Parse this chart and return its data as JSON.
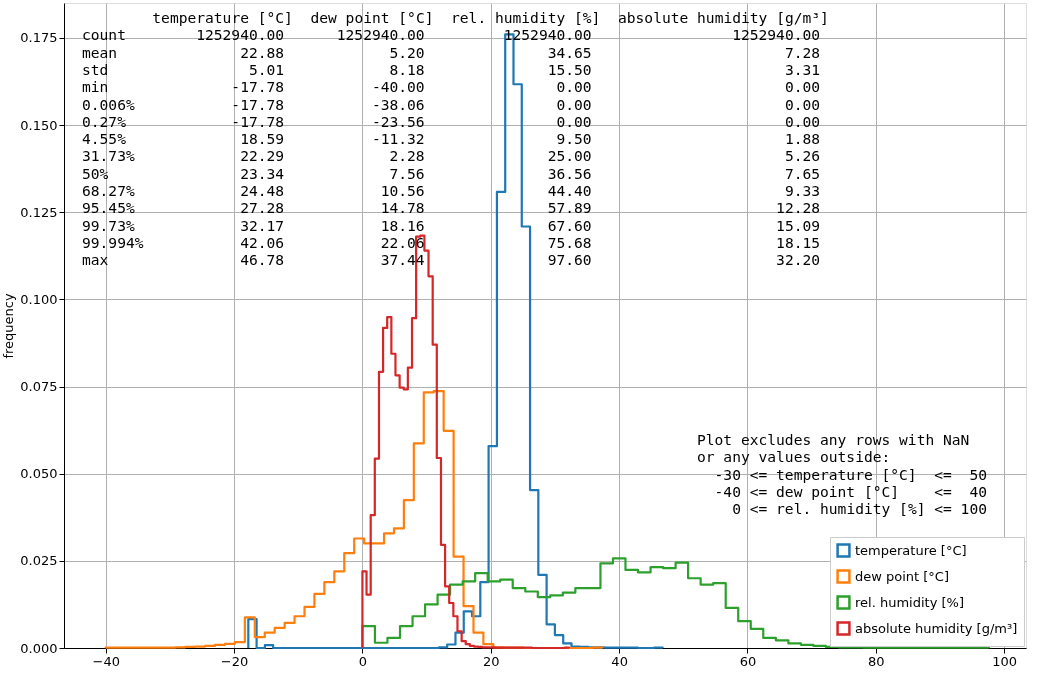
{
  "chart_data": {
    "type": "step",
    "ylabel": "frequency",
    "xlim": [
      -46.5,
      103.4
    ],
    "ylim": [
      0,
      0.185
    ],
    "xticks": [
      {
        "value": -40,
        "label": "−40"
      },
      {
        "value": -20,
        "label": "−20"
      },
      0,
      20,
      40,
      60,
      80,
      100
    ],
    "yticks": [
      {
        "value": 0,
        "label": "0.000"
      },
      0.025,
      {
        "value": 0.05,
        "label": "0.050"
      },
      0.075,
      {
        "value": 0.1,
        "label": "0.100"
      },
      0.125,
      {
        "value": 0.15,
        "label": "0.150"
      },
      0.175
    ],
    "grid": true,
    "legend": "bottom right",
    "series": [
      {
        "name": "temperature [°C]",
        "color": "#1f77b4",
        "x": [
          -17.78,
          -17.78,
          -16.49,
          -15.2,
          -13.91,
          -12.62,
          -11.32,
          -10.03,
          -8.74,
          -7.45,
          -6.16,
          -4.87,
          -3.58,
          -2.29,
          -0.99,
          0.3,
          1.59,
          2.88,
          4.17,
          5.46,
          6.75,
          8.04,
          9.34,
          10.63,
          11.92,
          13.21,
          14.5,
          15.79,
          17.08,
          18.37,
          19.66,
          20.96,
          22.25,
          23.54,
          24.83,
          26.12,
          27.41,
          28.7,
          29.99,
          31.29,
          32.58,
          33.87,
          35.16,
          36.45,
          37.74,
          39.03,
          40.32,
          41.62,
          42.91,
          44.2,
          45.49,
          46.78
        ],
        "values": [
          0,
          0.0083,
          0,
          0.0008,
          0,
          0,
          0,
          0,
          0,
          0,
          0,
          0,
          0,
          0,
          0,
          0,
          0,
          0,
          0,
          0,
          0,
          0,
          0,
          0,
          0.0002,
          0.001,
          0.0044,
          0.0105,
          0.0091,
          0.0189,
          0.0579,
          0.1308,
          0.176,
          0.1617,
          0.1209,
          0.0453,
          0.021,
          0.0068,
          0.0037,
          0.0013,
          0.0004,
          0.0003,
          0.0002,
          0.0002,
          0.0001,
          0.0001,
          0.0001,
          0.0001,
          0,
          0,
          0.0001,
          0
        ]
      },
      {
        "name": "dew point [°C]",
        "color": "#ff7f0e",
        "x": [
          -40.0,
          -40.0,
          -38.45,
          -36.9,
          -35.35,
          -33.8,
          -32.26,
          -30.71,
          -29.16,
          -27.61,
          -26.06,
          -24.51,
          -22.96,
          -21.41,
          -19.87,
          -18.32,
          -16.77,
          -15.22,
          -13.67,
          -12.12,
          -10.57,
          -9.02,
          -7.48,
          -5.93,
          -4.38,
          -2.83,
          -1.28,
          0.27,
          1.82,
          3.37,
          4.92,
          6.46,
          8.01,
          9.56,
          11.11,
          12.66,
          14.21,
          15.76,
          17.31,
          18.85,
          20.4,
          21.95,
          23.5,
          25.05,
          26.6,
          28.15,
          29.7,
          31.24,
          32.79,
          34.34,
          35.89,
          37.44
        ],
        "values": [
          0,
          0.0001,
          0.0001,
          0.0001,
          0.0001,
          0.0001,
          0.0001,
          0.0001,
          0.0002,
          0.0003,
          0.0004,
          0.0006,
          0.0009,
          0.0012,
          0.0017,
          0.0088,
          0.0031,
          0.0044,
          0.0058,
          0.0072,
          0.0091,
          0.0118,
          0.0155,
          0.0189,
          0.022,
          0.0272,
          0.0314,
          0.03,
          0.03,
          0.0329,
          0.0343,
          0.0424,
          0.0587,
          0.0733,
          0.0737,
          0.0623,
          0.0262,
          0.012,
          0.0044,
          0.0011,
          0.0002,
          0.0001,
          0.0001,
          0,
          0,
          0,
          0,
          0,
          0,
          0,
          0.0001,
          0
        ]
      },
      {
        "name": "rel. humidity [%]",
        "color": "#2ca02c",
        "x": [
          0,
          0,
          1.95,
          3.9,
          5.86,
          7.81,
          9.76,
          11.71,
          13.66,
          15.62,
          17.57,
          19.52,
          21.47,
          23.42,
          25.38,
          27.33,
          29.28,
          31.23,
          33.18,
          35.14,
          37.09,
          39.04,
          40.99,
          42.94,
          44.9,
          46.85,
          48.8,
          50.75,
          52.7,
          54.66,
          56.61,
          58.56,
          60.51,
          62.46,
          64.42,
          66.37,
          68.32,
          70.27,
          72.22,
          74.18,
          76.13,
          78.08,
          80.03,
          81.98,
          83.94,
          85.89,
          87.84,
          89.79,
          91.74,
          93.7,
          95.65,
          97.6
        ],
        "values": [
          0,
          0.0063,
          0.0015,
          0.0029,
          0.0063,
          0.0091,
          0.0125,
          0.0153,
          0.0182,
          0.0191,
          0.0215,
          0.0191,
          0.0196,
          0.0172,
          0.0162,
          0.0146,
          0.0151,
          0.0159,
          0.0172,
          0.0172,
          0.0243,
          0.0257,
          0.0224,
          0.0217,
          0.0232,
          0.0229,
          0.0245,
          0.02,
          0.0182,
          0.0186,
          0.0115,
          0.0077,
          0.0055,
          0.0029,
          0.0022,
          0.0013,
          0.0009,
          0.0006,
          0.0003,
          0.0002,
          0.0002,
          0.0001,
          0.0001,
          0.0001,
          0.0001,
          0.0001,
          0.0001,
          0.0001,
          0.0001,
          0.0001,
          0.0001,
          0
        ]
      },
      {
        "name": "absolute humidity [g/m³]",
        "color": "#d62728",
        "x": [
          0,
          0,
          0.64,
          1.29,
          1.93,
          2.58,
          3.22,
          3.86,
          4.51,
          5.15,
          5.8,
          6.44,
          7.08,
          7.73,
          8.37,
          9.02,
          9.66,
          10.3,
          10.95,
          11.59,
          12.24,
          12.88,
          13.52,
          14.17,
          14.81,
          15.46,
          16.1,
          16.74,
          17.39,
          18.03,
          18.68,
          19.32,
          19.96,
          20.61,
          21.25,
          21.9,
          22.54,
          23.18,
          23.83,
          24.47,
          25.12,
          25.76,
          26.4,
          27.05,
          27.69,
          28.34,
          28.98,
          29.62,
          30.27,
          30.91,
          31.56,
          32.2
        ],
        "values": [
          0,
          0.022,
          0.0153,
          0.0381,
          0.0543,
          0.0792,
          0.0918,
          0.0949,
          0.0844,
          0.0782,
          0.0747,
          0.0742,
          0.0804,
          0.0946,
          0.118,
          0.1183,
          0.114,
          0.1066,
          0.087,
          0.0545,
          0.0296,
          0.0177,
          0.0129,
          0.0091,
          0.0048,
          0.002,
          0.0011,
          0.0006,
          0.0004,
          0.0003,
          0.0002,
          0.0002,
          0.0002,
          0.0001,
          0.0001,
          0.0001,
          0.0001,
          0.0001,
          0.0001,
          0.0001,
          0.0001,
          0.0001,
          0,
          0,
          0,
          0,
          0,
          0,
          0,
          0,
          0.0001,
          0
        ]
      }
    ],
    "annotations": [
      "        temperature [°C]  dew point [°C]  rel. humidity [%]  absolute humidity [g/m³]\ncount        1252940.00      1252940.00         1252940.00                1252940.00\nmean              22.88            5.20              34.65                      7.28\nstd                5.01            8.18              15.50                      3.31\nmin              -17.78          -40.00               0.00                      0.00\n0.006%           -17.78          -38.06               0.00                      0.00\n0.27%            -17.78          -23.56               0.00                      0.00\n4.55%             18.59          -11.32               9.50                      1.88\n31.73%            22.29            2.28              25.00                      5.26\n50%               23.34            7.56              36.56                      7.65\n68.27%            24.48           10.56              44.40                      9.33\n95.45%            27.28           14.78              57.89                     12.28\n99.73%            32.17           18.16              67.60                     15.09\n99.994%           42.06           22.06              75.68                     18.15\nmax               46.78           37.44              97.60                     32.20",
      "Plot excludes any rows with NaN\nor any values outside:\n  -30 <= temperature [°C]  <=  50\n  -40 <= dew point [°C]    <=  40\n    0 <= rel. humidity [%] <= 100"
    ]
  }
}
